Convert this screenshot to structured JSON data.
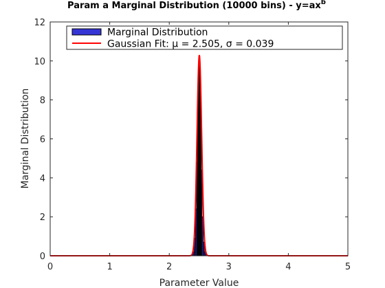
{
  "chart_data": {
    "type": "bar",
    "title": "Param a Marginal Distribution (10000 bins) - y=ax",
    "title_superscript": "b",
    "xlabel": "Parameter Value",
    "ylabel": "Marginal Distribution",
    "xlim": [
      0,
      5
    ],
    "ylim": [
      0,
      12
    ],
    "x_ticks": [
      "0",
      "1",
      "2",
      "3",
      "4",
      "5"
    ],
    "y_ticks": [
      "0",
      "2",
      "4",
      "6",
      "8",
      "10",
      "12"
    ],
    "grid": false,
    "legend_position": "top",
    "histogram": {
      "name": "Marginal Distribution",
      "color": "#3535d6",
      "bin_centers": [
        2.39,
        2.41,
        2.43,
        2.45,
        2.47,
        2.48,
        2.49,
        2.5,
        2.505,
        2.51,
        2.52,
        2.53,
        2.54,
        2.56,
        2.58,
        2.6,
        2.62
      ],
      "values": [
        0.05,
        0.2,
        0.9,
        2.4,
        4.8,
        7.0,
        8.9,
        9.6,
        9.8,
        9.4,
        8.4,
        6.6,
        4.4,
        2.0,
        0.7,
        0.2,
        0.05
      ]
    },
    "fit": {
      "name": "Gaussian Fit: μ = 2.505, σ  = 0.039",
      "color": "#ff0000",
      "mu": 2.505,
      "sigma": 0.039,
      "peak": 10.3
    }
  }
}
